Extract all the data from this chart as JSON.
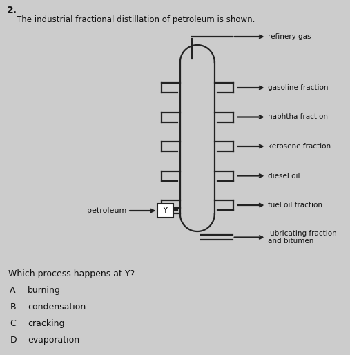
{
  "question_number": "2.",
  "description": "The industrial fractional distillation of petroleum is shown.",
  "bg_color": "#cccccc",
  "fractions": [
    "gasoline fraction",
    "naphtha fraction",
    "kerosene fraction",
    "diesel oil",
    "fuel oil fraction"
  ],
  "top_label": "refinery gas",
  "bottom_label": "lubricating fraction\nand bitumen",
  "inlet_label": "petroleum",
  "y_label": "Y",
  "question": "Which process happens at Y?",
  "options": [
    [
      "A",
      "burning"
    ],
    [
      "B",
      "condensation"
    ],
    [
      "C",
      "cracking"
    ],
    [
      "D",
      "evaporation"
    ]
  ],
  "text_color": "#111111",
  "line_color": "#222222",
  "box_color": "#f0f0f0"
}
